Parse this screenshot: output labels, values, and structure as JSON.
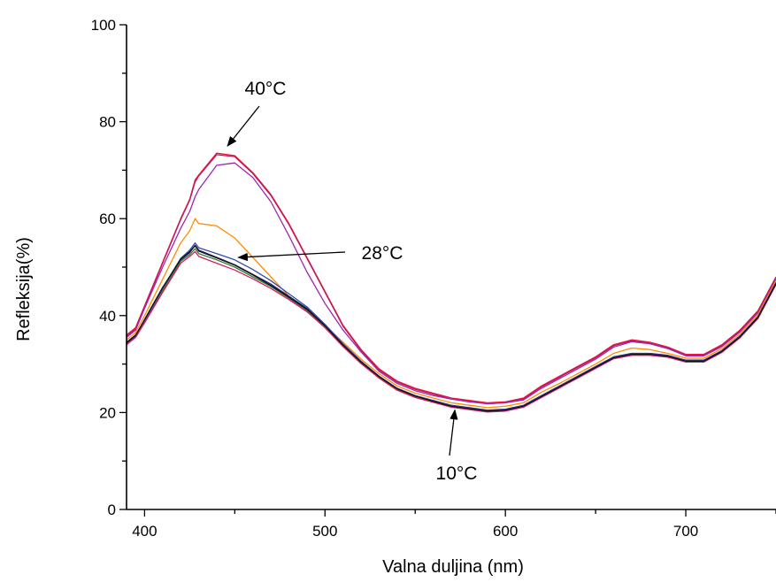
{
  "chart_data": {
    "type": "line",
    "title": "",
    "xlabel": "Valna duljina (nm)",
    "ylabel": "Refleksija(%)",
    "xlim": [
      390,
      750
    ],
    "ylim": [
      0,
      100
    ],
    "x_ticks": [
      400,
      500,
      600,
      700
    ],
    "y_ticks": [
      0,
      20,
      40,
      60,
      80,
      100
    ],
    "grid": false,
    "legend": "none",
    "annotations": [
      {
        "text": "40°C",
        "arrow_to": [
          446,
          75
        ]
      },
      {
        "text": "28°C",
        "arrow_to": [
          452,
          52
        ]
      },
      {
        "text": "10°C",
        "arrow_to": [
          572,
          20.5
        ]
      }
    ],
    "series": [
      {
        "color": "#e8163a",
        "x": [
          390,
          395,
          400,
          410,
          420,
          425,
          428,
          430,
          440,
          450,
          460,
          470,
          480,
          490,
          500,
          510,
          520,
          530,
          540,
          550,
          560,
          570,
          580,
          590,
          600,
          610,
          620,
          630,
          640,
          650,
          660,
          670,
          680,
          690,
          700,
          710,
          720,
          730,
          740,
          750
        ],
        "y": [
          36,
          37.5,
          42,
          51,
          60,
          64,
          68,
          69,
          73.5,
          73,
          69.5,
          65,
          59,
          52,
          45,
          38,
          33,
          29,
          26.5,
          25,
          24,
          23,
          22.5,
          22,
          22.2,
          23,
          25.5,
          27.5,
          29.5,
          31.5,
          34,
          35,
          34.5,
          33.5,
          32,
          32,
          34,
          37,
          41,
          48
        ]
      },
      {
        "color": "#c2185b",
        "x": [
          390,
          395,
          400,
          410,
          420,
          425,
          428,
          430,
          440,
          450,
          460,
          470,
          480,
          490,
          500,
          510,
          520,
          530,
          540,
          550,
          560,
          570,
          580,
          590,
          600,
          610,
          620,
          630,
          640,
          650,
          660,
          670,
          680,
          690,
          700,
          710,
          720,
          730,
          740,
          750
        ],
        "y": [
          35.8,
          37.2,
          41.8,
          50.8,
          59.8,
          63.8,
          67.6,
          68.8,
          73.2,
          72.8,
          69.3,
          64.8,
          58.8,
          51.8,
          44.8,
          37.8,
          32.8,
          28.8,
          26.3,
          24.8,
          23.8,
          22.8,
          22.3,
          21.8,
          22,
          22.8,
          25.3,
          27.3,
          29.3,
          31.3,
          33.8,
          34.8,
          34.3,
          33.3,
          31.8,
          31.8,
          33.8,
          36.8,
          40.8,
          47.8
        ]
      },
      {
        "color": "#9c27b0",
        "x": [
          390,
          395,
          400,
          410,
          420,
          425,
          428,
          430,
          440,
          450,
          460,
          470,
          480,
          490,
          500,
          510,
          520,
          530,
          540,
          550,
          560,
          570,
          580,
          590,
          600,
          610,
          620,
          630,
          640,
          650,
          660,
          670,
          680,
          690,
          700,
          710,
          720,
          730,
          740,
          750
        ],
        "y": [
          35.5,
          37,
          41.5,
          50,
          58,
          61.5,
          64.5,
          66,
          71,
          71.5,
          68.5,
          63.5,
          56.5,
          49,
          42.5,
          37,
          32.5,
          28.5,
          26,
          24.5,
          23.5,
          22.8,
          22.2,
          21.8,
          22,
          22.6,
          25,
          27,
          29,
          31,
          33.5,
          34.6,
          34.2,
          33.2,
          31.7,
          31.7,
          33.6,
          36.6,
          40.6,
          47.6
        ]
      },
      {
        "color": "#ff8c00",
        "x": [
          390,
          395,
          400,
          410,
          420,
          425,
          428,
          430,
          440,
          450,
          460,
          470,
          480,
          490,
          500,
          510,
          520,
          530,
          540,
          550,
          560,
          570,
          580,
          590,
          600,
          610,
          620,
          630,
          640,
          650,
          660,
          670,
          680,
          690,
          700,
          710,
          720,
          730,
          740,
          750
        ],
        "y": [
          35,
          36.5,
          40,
          47.5,
          55,
          57.5,
          60,
          59,
          58.5,
          56,
          52,
          48,
          44,
          41,
          38,
          34.5,
          31,
          28,
          25.5,
          24,
          23,
          22,
          21.5,
          21,
          21.3,
          22,
          24.2,
          26,
          28,
          30,
          32.2,
          33.3,
          33,
          32.2,
          31.2,
          31.2,
          33.2,
          36.2,
          40.2,
          47.2
        ]
      },
      {
        "color": "#1a237e",
        "x": [
          390,
          395,
          400,
          410,
          420,
          425,
          428,
          430,
          440,
          450,
          460,
          470,
          480,
          490,
          500,
          510,
          520,
          530,
          540,
          550,
          560,
          570,
          580,
          590,
          600,
          610,
          620,
          630,
          640,
          650,
          660,
          670,
          680,
          690,
          700,
          710,
          720,
          730,
          740,
          750
        ],
        "y": [
          34.5,
          36,
          39,
          45.5,
          51.5,
          53,
          54.5,
          53.5,
          52,
          50.5,
          48.5,
          46.5,
          44,
          41.5,
          38,
          34,
          30.5,
          27.5,
          25,
          23.5,
          22.5,
          21.5,
          21,
          20.5,
          20.7,
          21.5,
          23.5,
          25.5,
          27.5,
          29.5,
          31.5,
          32.2,
          32.2,
          31.8,
          30.8,
          30.8,
          32.8,
          35.8,
          39.8,
          46.8
        ]
      },
      {
        "color": "#2e7d32",
        "x": [
          390,
          395,
          400,
          410,
          420,
          425,
          428,
          430,
          440,
          450,
          460,
          470,
          480,
          490,
          500,
          510,
          520,
          530,
          540,
          550,
          560,
          570,
          580,
          590,
          600,
          610,
          620,
          630,
          640,
          650,
          660,
          670,
          680,
          690,
          700,
          710,
          720,
          730,
          740,
          750
        ],
        "y": [
          34.3,
          35.8,
          38.8,
          45.2,
          51.2,
          52.6,
          53.8,
          52.8,
          51.5,
          50,
          48,
          46,
          43.6,
          41.1,
          37.7,
          33.8,
          30.3,
          27.3,
          24.8,
          23.3,
          22.3,
          21.3,
          20.8,
          20.3,
          20.5,
          21.3,
          23.3,
          25.3,
          27.3,
          29.3,
          31.3,
          32,
          32,
          31.6,
          30.6,
          30.6,
          32.6,
          35.6,
          39.6,
          46.6
        ]
      },
      {
        "color": "#3949ab",
        "x": [
          390,
          395,
          400,
          410,
          420,
          425,
          428,
          430,
          440,
          450,
          460,
          470,
          480,
          490,
          500,
          510,
          520,
          530,
          540,
          550,
          560,
          570,
          580,
          590,
          600,
          610,
          620,
          630,
          640,
          650,
          660,
          670,
          680,
          690,
          700,
          710,
          720,
          730,
          740,
          750
        ],
        "y": [
          34.2,
          35.7,
          38.9,
          45.6,
          51.8,
          53.5,
          55,
          54,
          52.8,
          51.5,
          49.5,
          47.2,
          44.5,
          41.8,
          38.2,
          34.2,
          30.6,
          27.5,
          25,
          23.5,
          22.4,
          21.4,
          20.9,
          20.4,
          20.6,
          21.4,
          23.4,
          25.4,
          27.4,
          29.4,
          31.4,
          32.1,
          32.1,
          31.7,
          30.7,
          30.7,
          32.7,
          35.7,
          39.7,
          46.7
        ]
      },
      {
        "color": "#d81b60",
        "x": [
          390,
          395,
          400,
          410,
          420,
          425,
          428,
          430,
          440,
          450,
          460,
          470,
          480,
          490,
          500,
          510,
          520,
          530,
          540,
          550,
          560,
          570,
          580,
          590,
          600,
          610,
          620,
          630,
          640,
          650,
          660,
          670,
          680,
          690,
          700,
          710,
          720,
          730,
          740,
          750
        ],
        "y": [
          34,
          35.5,
          38.5,
          44.8,
          50.8,
          52.2,
          53.2,
          52.2,
          50.8,
          49.4,
          47.6,
          45.6,
          43.3,
          40.8,
          37.5,
          33.6,
          30.1,
          27.1,
          24.6,
          23.1,
          22.1,
          21.1,
          20.6,
          20.1,
          20.3,
          21.1,
          23.1,
          25.1,
          27.1,
          29.1,
          31.1,
          31.8,
          31.8,
          31.4,
          30.4,
          30.4,
          32.4,
          35.4,
          39.4,
          46.4
        ]
      },
      {
        "color": "#111111",
        "x": [
          390,
          395,
          400,
          410,
          420,
          425,
          428,
          430,
          440,
          450,
          460,
          470,
          480,
          490,
          500,
          510,
          520,
          530,
          540,
          550,
          560,
          570,
          580,
          590,
          600,
          610,
          620,
          630,
          640,
          650,
          660,
          670,
          680,
          690,
          700,
          710,
          720,
          730,
          740,
          750
        ],
        "y": [
          34.4,
          35.9,
          39.2,
          45.8,
          51.6,
          53.2,
          54.4,
          53.3,
          51.9,
          50.4,
          48.4,
          46.2,
          43.8,
          41.3,
          37.9,
          33.9,
          30.4,
          27.4,
          24.9,
          23.4,
          22.3,
          21.3,
          20.8,
          20.3,
          20.5,
          21.3,
          23.3,
          25.3,
          27.3,
          29.3,
          31.3,
          32,
          32,
          31.6,
          30.6,
          30.6,
          32.6,
          35.6,
          39.6,
          46.6
        ]
      }
    ]
  }
}
